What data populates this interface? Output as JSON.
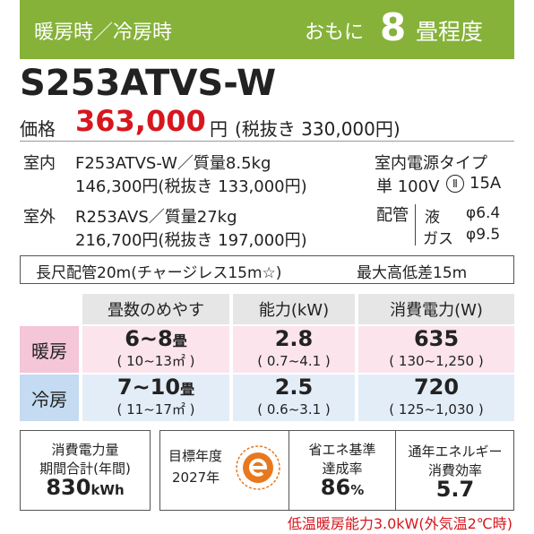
{
  "header": {
    "mode": "暖房時／冷房時",
    "guide_prefix": "おもに",
    "guide_number": "8",
    "guide_suffix": "畳程度"
  },
  "model": "S253ATVS-W",
  "price": {
    "label": "価格",
    "amount": "363,000",
    "unit": "円",
    "tax_excluded": "(税抜き 330,000円)"
  },
  "indoor": {
    "label": "室内",
    "model_weight": "F253ATVS-W／質量8.5kg",
    "price": "146,300円(税抜き 133,000円)"
  },
  "outdoor": {
    "label": "室外",
    "model_weight": "R253AVS／質量27kg",
    "price": "216,700円(税抜き 197,000円)"
  },
  "power": {
    "label": "室内電源タイプ",
    "phase": "単 100V",
    "plug": "Ⅱ",
    "current": "15A"
  },
  "piping": {
    "label": "配管",
    "liquid_label": "液",
    "liquid": "φ6.4",
    "gas_label": "ガス",
    "gas": "φ9.5"
  },
  "piping_note": {
    "long": "長尺配管20m(チャージレス15m☆)",
    "height": "最大高低差15m"
  },
  "table": {
    "headers": [
      "畳数のめやす",
      "能力(kW)",
      "消費電力(W)"
    ],
    "rows": [
      {
        "label": "暖房",
        "tatami": "6~8",
        "tatami_unit": "畳",
        "area": "( 10~13㎡ )",
        "capacity": "2.8",
        "capacity_range": "( 0.7~4.1 )",
        "power": "635",
        "power_range": "( 130~1,250 )"
      },
      {
        "label": "冷房",
        "tatami": "7~10",
        "tatami_unit": "畳",
        "area": "( 11~17㎡ )",
        "capacity": "2.5",
        "capacity_range": "( 0.6~3.1 )",
        "power": "720",
        "power_range": "( 125~1,030 )"
      }
    ]
  },
  "efficiency": {
    "annual_label_1": "消費電力量",
    "annual_label_2": "期間合計(年間)",
    "annual_value": "830",
    "annual_unit": "kWh",
    "target_label_1": "目標年度",
    "target_label_2": "2027年",
    "rate_label_1": "省エネ基準",
    "rate_label_2": "達成率",
    "rate_value": "86",
    "rate_unit": "%",
    "apf_label_1": "通年エネルギー",
    "apf_label_2": "消費効率",
    "apf_value": "5.7"
  },
  "footnote": "低温暖房能力3.0kW(外気温2℃時)"
}
